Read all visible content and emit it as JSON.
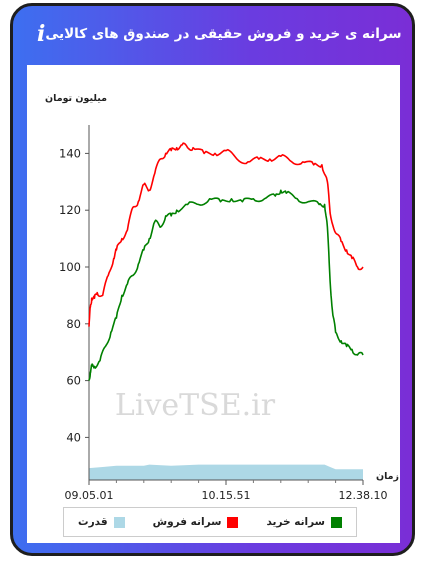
{
  "header": {
    "title": "سرانه ی خرید و فروش حقیقی در صندوق های کالایی",
    "info_icon": "i"
  },
  "chart_data": {
    "type": "line",
    "ylabel": "میلیون تومان",
    "xlabel": "زمان",
    "yticks": [
      40,
      60,
      80,
      100,
      120,
      140
    ],
    "ylim": [
      25,
      150
    ],
    "x_tick_labels": [
      "09.05.01",
      "10.15.51",
      "12.38.10"
    ],
    "watermark": "LiveTSE.ir",
    "series": [
      {
        "name": "سرانه فروش",
        "color": "#ff0000",
        "t": [
          0,
          0.005,
          0.01,
          0.02,
          0.03,
          0.05,
          0.07,
          0.09,
          0.1,
          0.12,
          0.14,
          0.16,
          0.18,
          0.2,
          0.22,
          0.24,
          0.26,
          0.28,
          0.3,
          0.32,
          0.34,
          0.36,
          0.38,
          0.42,
          0.46,
          0.5,
          0.54,
          0.58,
          0.62,
          0.66,
          0.7,
          0.74,
          0.78,
          0.82,
          0.85,
          0.87,
          0.88,
          0.9,
          0.92,
          0.94,
          0.96,
          0.98,
          1.0
        ],
        "values": [
          79,
          86,
          89,
          89,
          91,
          90,
          97,
          103,
          106,
          110,
          113,
          121,
          123,
          129,
          127,
          133,
          138,
          140,
          141,
          142,
          143,
          142,
          142,
          140,
          140,
          141,
          138,
          137,
          138,
          138,
          139,
          137,
          137,
          136,
          136,
          130,
          119,
          112,
          109,
          106,
          103,
          100,
          100
        ]
      },
      {
        "name": "سرانه خرید",
        "color": "#008000",
        "t": [
          0,
          0.005,
          0.01,
          0.02,
          0.04,
          0.06,
          0.08,
          0.1,
          0.12,
          0.14,
          0.16,
          0.18,
          0.2,
          0.22,
          0.24,
          0.26,
          0.28,
          0.3,
          0.32,
          0.36,
          0.4,
          0.44,
          0.48,
          0.52,
          0.56,
          0.6,
          0.64,
          0.68,
          0.7,
          0.72,
          0.76,
          0.8,
          0.84,
          0.86,
          0.87,
          0.88,
          0.89,
          0.9,
          0.92,
          0.94,
          0.96,
          0.98,
          1.0
        ],
        "values": [
          60,
          63,
          65,
          65,
          67,
          72,
          77,
          82,
          90,
          94,
          97,
          101,
          106,
          110,
          116,
          114,
          118,
          118,
          120,
          122,
          122,
          124,
          123,
          124,
          123,
          124,
          124,
          125,
          127,
          126,
          124,
          123,
          122,
          122,
          114,
          95,
          83,
          77,
          74,
          72,
          71,
          69,
          69
        ]
      }
    ],
    "area": {
      "name": "قدرت",
      "color": "#add8e6",
      "t": [
        0,
        0.05,
        0.1,
        0.2,
        0.22,
        0.3,
        0.4,
        0.5,
        0.6,
        0.7,
        0.8,
        0.86,
        0.88,
        0.9,
        0.95,
        1.0
      ],
      "values": [
        10,
        11,
        12,
        12,
        13,
        12,
        13,
        13,
        13,
        13,
        13,
        13,
        11,
        9,
        9,
        9
      ]
    },
    "area_max": 27,
    "legend": [
      {
        "label": "سرانه خرید",
        "color": "#008000"
      },
      {
        "label": "سرانه فروش",
        "color": "#ff0000"
      },
      {
        "label": "قدرت",
        "color": "#add8e6"
      }
    ]
  }
}
